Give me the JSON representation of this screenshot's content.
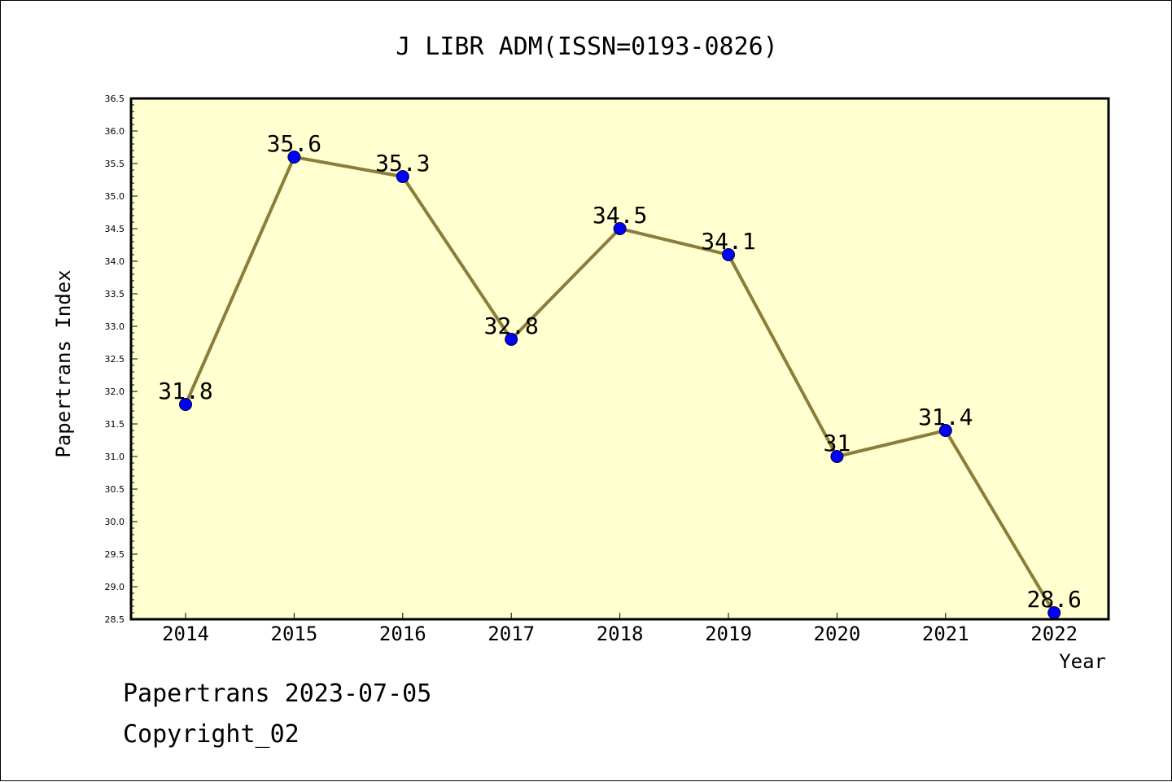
{
  "chart_data": {
    "type": "line",
    "title": "J LIBR ADM(ISSN=0193-0826)",
    "xlabel": "Year",
    "ylabel": "Papertrans Index",
    "x": [
      "2014",
      "2015",
      "2016",
      "2017",
      "2018",
      "2019",
      "2020",
      "2021",
      "2022"
    ],
    "series": [
      {
        "values": [
          31.8,
          35.6,
          35.3,
          32.8,
          34.5,
          34.1,
          31.0,
          31.4,
          28.6
        ],
        "labels": [
          "31.8",
          "35.6",
          "35.3",
          "32.8",
          "34.5",
          "34.1",
          "31",
          "31.4",
          "28.6"
        ]
      }
    ],
    "ylim": [
      28.5,
      36.5
    ],
    "yticks": [
      "28.5",
      "29.0",
      "29.5",
      "30.0",
      "30.5",
      "31.0",
      "31.5",
      "32.0",
      "32.5",
      "33.0",
      "33.5",
      "34.0",
      "34.5",
      "35.0",
      "35.5",
      "36.0",
      "36.5"
    ],
    "grid": false,
    "legend": "none",
    "colors": {
      "plot_background": "#ffffd0",
      "line": "#8b7d3a",
      "marker": "#0000ff"
    }
  },
  "footer": {
    "line1": "Papertrans 2023-07-05",
    "line2": "Copyright_02"
  }
}
